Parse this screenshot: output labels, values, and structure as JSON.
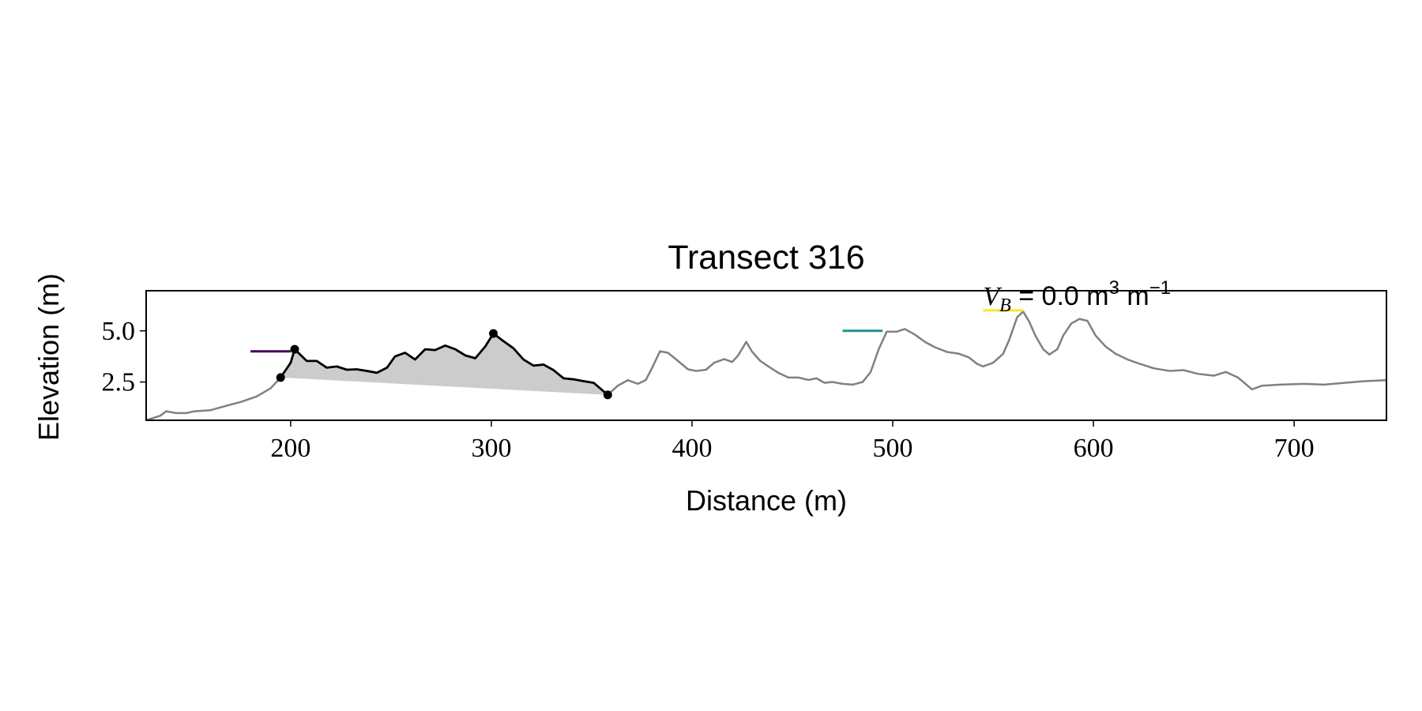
{
  "chart_data": {
    "type": "line",
    "title": "Transect 316",
    "x_label": "Distance (m)",
    "y_label": "Elevation (m)",
    "xlim": [
      128,
      746
    ],
    "ylim": [
      0.63,
      6.96
    ],
    "xticks": [
      200,
      300,
      400,
      500,
      600,
      700
    ],
    "yticks": [
      2.5,
      {
        "value": 5,
        "label": "5.0"
      }
    ],
    "fill_color": "#cccccc",
    "series": [
      {
        "name": "profile",
        "color": "#808080",
        "x": [
          128,
          135,
          138,
          143,
          148,
          152,
          160,
          168,
          175,
          183,
          190,
          195,
          200,
          202,
          208,
          213,
          218,
          223,
          228,
          233,
          238,
          243,
          248,
          252,
          257,
          262,
          267,
          272,
          277,
          282,
          287,
          292,
          297,
          301,
          306,
          311,
          316,
          321,
          326,
          331,
          336,
          341,
          346,
          351,
          358,
          363,
          368,
          373,
          377,
          380,
          384,
          388,
          393,
          398,
          402,
          407,
          411,
          416,
          420,
          423,
          427,
          430,
          434,
          439,
          443,
          448,
          453,
          458,
          462,
          466,
          470,
          475,
          480,
          485,
          489,
          493,
          497,
          502,
          506,
          511,
          516,
          521,
          527,
          533,
          538,
          542,
          545,
          550,
          555,
          558,
          562,
          565,
          568,
          571,
          575,
          578,
          582,
          585,
          589,
          593,
          597,
          601,
          606,
          611,
          617,
          623,
          630,
          638,
          645,
          652,
          660,
          666,
          672,
          679,
          684,
          693,
          705,
          715,
          725,
          735,
          746
        ],
        "values": [
          0.63,
          0.85,
          1.07,
          0.98,
          0.98,
          1.07,
          1.12,
          1.34,
          1.52,
          1.79,
          2.19,
          2.72,
          3.44,
          4.1,
          3.53,
          3.53,
          3.2,
          3.26,
          3.1,
          3.12,
          3.04,
          2.95,
          3.2,
          3.75,
          3.93,
          3.6,
          4.1,
          4.06,
          4.28,
          4.1,
          3.8,
          3.66,
          4.24,
          4.87,
          4.5,
          4.15,
          3.6,
          3.3,
          3.35,
          3.08,
          2.68,
          2.63,
          2.54,
          2.46,
          1.87,
          2.32,
          2.59,
          2.41,
          2.6,
          3.17,
          4.0,
          3.93,
          3.53,
          3.12,
          3.04,
          3.1,
          3.44,
          3.62,
          3.48,
          3.8,
          4.46,
          3.97,
          3.53,
          3.2,
          2.95,
          2.72,
          2.72,
          2.6,
          2.68,
          2.46,
          2.5,
          2.41,
          2.37,
          2.5,
          2.99,
          4.1,
          4.96,
          4.96,
          5.09,
          4.82,
          4.46,
          4.2,
          3.97,
          3.88,
          3.7,
          3.39,
          3.26,
          3.44,
          3.88,
          4.55,
          5.67,
          5.94,
          5.45,
          4.78,
          4.1,
          3.84,
          4.1,
          4.78,
          5.36,
          5.58,
          5.49,
          4.78,
          4.24,
          3.88,
          3.6,
          3.39,
          3.17,
          3.04,
          3.08,
          2.9,
          2.81,
          2.99,
          2.72,
          2.14,
          2.32,
          2.37,
          2.41,
          2.37,
          2.46,
          2.54,
          2.59
        ]
      },
      {
        "name": "dune",
        "color": "#000000",
        "x": [
          195,
          200,
          202,
          208,
          213,
          218,
          223,
          228,
          233,
          238,
          243,
          248,
          252,
          257,
          262,
          267,
          272,
          277,
          282,
          287,
          292,
          297,
          301,
          306,
          311,
          316,
          321,
          326,
          331,
          336,
          341,
          346,
          351,
          358
        ],
        "values": [
          2.72,
          3.44,
          4.1,
          3.53,
          3.53,
          3.2,
          3.26,
          3.1,
          3.12,
          3.04,
          2.95,
          3.2,
          3.75,
          3.93,
          3.6,
          4.1,
          4.06,
          4.28,
          4.1,
          3.8,
          3.66,
          4.24,
          4.87,
          4.5,
          4.15,
          3.6,
          3.3,
          3.35,
          3.08,
          2.68,
          2.63,
          2.54,
          2.46,
          1.87
        ]
      }
    ],
    "points": {
      "color": "#000000",
      "x": [
        195,
        202,
        301,
        358
      ],
      "values": [
        2.72,
        4.1,
        4.87,
        1.87
      ]
    },
    "levels": [
      {
        "color": "#440154",
        "x": [
          180,
          200
        ],
        "values": [
          4.0,
          4.0
        ]
      },
      {
        "color": "#21918c",
        "x": [
          475,
          495
        ],
        "values": [
          5.0,
          5.0
        ]
      },
      {
        "color": "#fde725",
        "x": [
          545,
          565
        ],
        "values": [
          6.0,
          6.0
        ]
      }
    ],
    "annotation": [
      "V",
      "B",
      " = 0.0 m",
      "3",
      " m",
      "−1"
    ]
  }
}
